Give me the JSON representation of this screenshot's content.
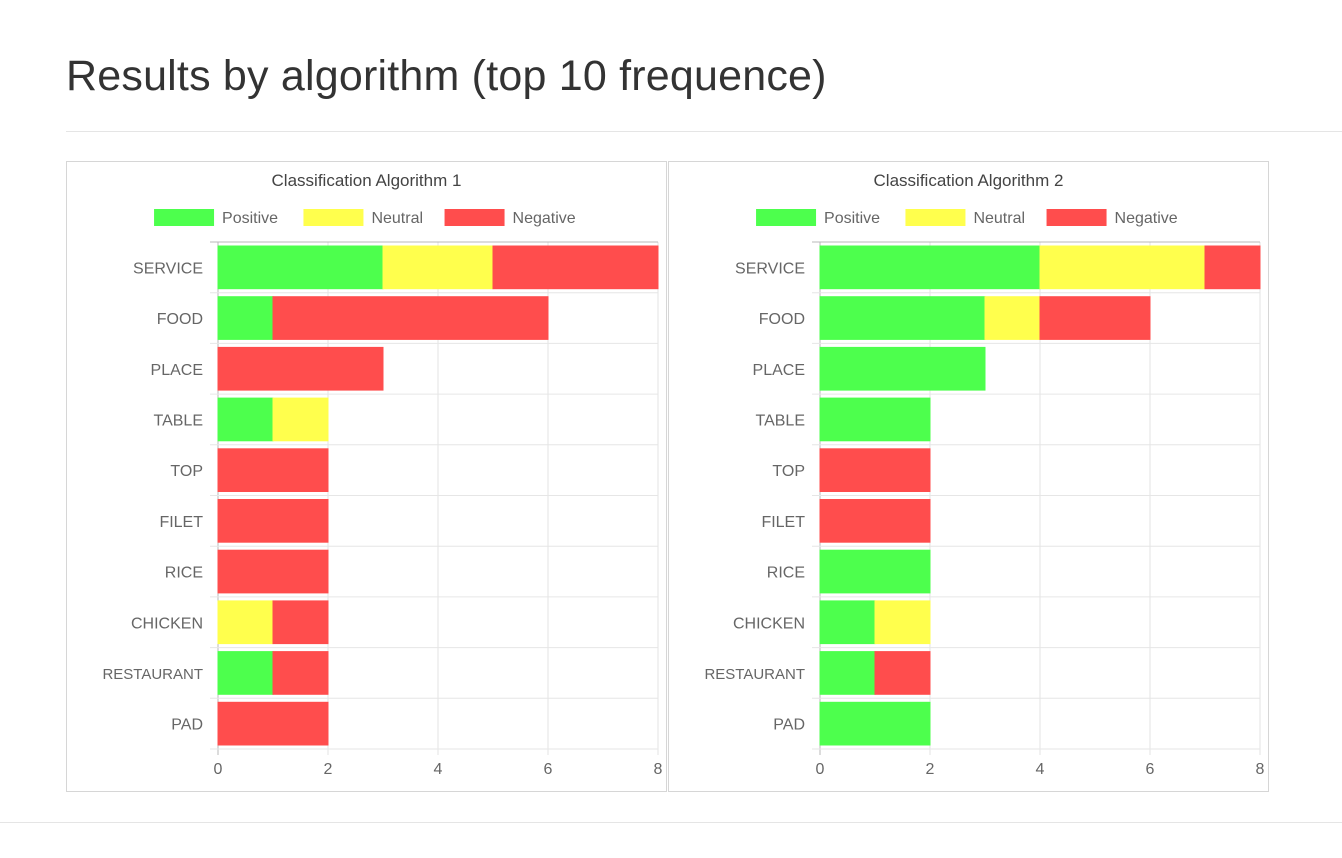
{
  "page": {
    "title": "Results by algorithm (top 10 frequence)"
  },
  "chart_data": [
    {
      "type": "bar",
      "orientation": "horizontal",
      "stacked": true,
      "title": "Classification Algorithm 1",
      "categories": [
        "SERVICE",
        "FOOD",
        "PLACE",
        "TABLE",
        "TOP",
        "FILET",
        "RICE",
        "CHICKEN",
        "RESTAURANT",
        "PAD"
      ],
      "series": [
        {
          "name": "Positive",
          "color": "#4dff4d",
          "values": [
            3,
            1,
            0,
            1,
            0,
            0,
            0,
            0,
            1,
            0
          ]
        },
        {
          "name": "Neutral",
          "color": "#ffff4d",
          "values": [
            2,
            0,
            0,
            1,
            0,
            0,
            0,
            1,
            0,
            0
          ]
        },
        {
          "name": "Negative",
          "color": "#ff4d4d",
          "values": [
            3,
            5,
            3,
            0,
            2,
            2,
            2,
            1,
            1,
            2
          ]
        }
      ],
      "xlim": [
        0,
        8
      ],
      "xticks": [
        "0",
        "2",
        "4",
        "6",
        "8"
      ],
      "grid": true,
      "legend_position": "top"
    },
    {
      "type": "bar",
      "orientation": "horizontal",
      "stacked": true,
      "title": "Classification Algorithm 2",
      "categories": [
        "SERVICE",
        "FOOD",
        "PLACE",
        "TABLE",
        "TOP",
        "FILET",
        "RICE",
        "CHICKEN",
        "RESTAURANT",
        "PAD"
      ],
      "series": [
        {
          "name": "Positive",
          "color": "#4dff4d",
          "values": [
            4,
            3,
            3,
            2,
            0,
            0,
            2,
            1,
            1,
            2
          ]
        },
        {
          "name": "Neutral",
          "color": "#ffff4d",
          "values": [
            3,
            1,
            0,
            0,
            0,
            0,
            0,
            1,
            0,
            0
          ]
        },
        {
          "name": "Negative",
          "color": "#ff4d4d",
          "values": [
            1,
            2,
            0,
            0,
            2,
            2,
            0,
            0,
            1,
            0
          ]
        }
      ],
      "xlim": [
        0,
        8
      ],
      "xticks": [
        "0",
        "2",
        "4",
        "6",
        "8"
      ],
      "grid": true,
      "legend_position": "top"
    }
  ]
}
